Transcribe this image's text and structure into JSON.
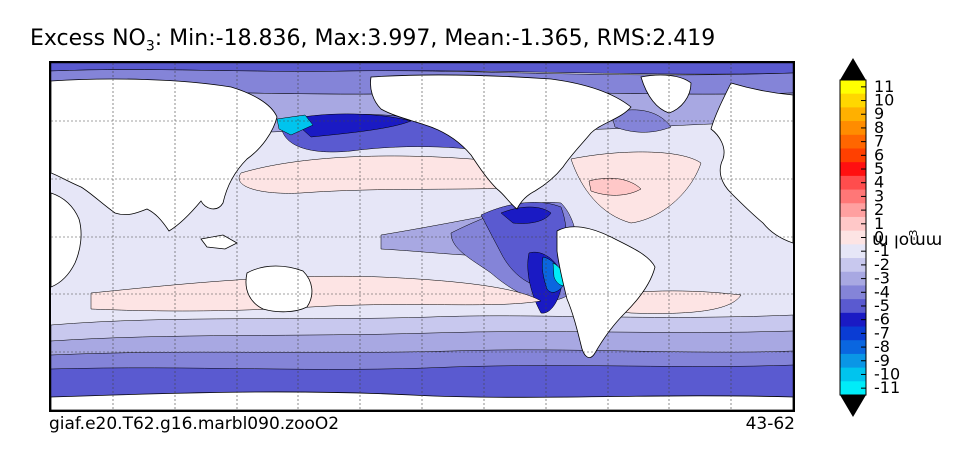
{
  "title": {
    "prefix": "Excess NO",
    "subscript": "3",
    "stats": ": Min:-18.836, Max:3.997, Mean:-1.365, RMS:2.419"
  },
  "footer": {
    "case_name": "giaf.e20.T62.g16.marbl090.zooO2",
    "years": "43-62"
  },
  "colorbar": {
    "units_base": "mmol m",
    "units_exponent": "-3",
    "levels": [
      "11",
      "10",
      "9",
      "8",
      "7",
      "6",
      "5",
      "4",
      "3",
      "2",
      "1",
      "0",
      "-1",
      "-2",
      "-3",
      "-4",
      "-5",
      "-6",
      "-7",
      "-8",
      "-9",
      "-10",
      "-11"
    ],
    "colors": [
      "#ffff00",
      "#ffd700",
      "#ffb000",
      "#ff8c00",
      "#ff6600",
      "#ff4000",
      "#ff1010",
      "#ff4d4d",
      "#ff7777",
      "#ffa0a0",
      "#ffc8c8",
      "#fde4e4",
      "#e6e6f7",
      "#c8c8ee",
      "#a8a8e2",
      "#8484d8",
      "#5a5ad0",
      "#1a1ac4",
      "#0a3cd4",
      "#0a66e0",
      "#0a96e6",
      "#00c4ee",
      "#00ecf8"
    ],
    "extend": "both"
  },
  "chart_data": {
    "type": "heatmap",
    "title": "Excess NO3: Min:-18.836, Max:3.997, Mean:-1.365, RMS:2.419",
    "variable": "Excess NO3",
    "units": "mmol m-3",
    "statistics": {
      "min": -18.836,
      "max": 3.997,
      "mean": -1.365,
      "rms": 2.419
    },
    "color_levels": [
      -11,
      -10,
      -9,
      -8,
      -7,
      -6,
      -5,
      -4,
      -3,
      -2,
      -1,
      0,
      1,
      2,
      3,
      4,
      5,
      6,
      7,
      8,
      9,
      10,
      11
    ],
    "colorbar_extend": "both",
    "grid": true,
    "projection": "global map, Pacific-centered",
    "annotation_left": "giaf.e20.T62.g16.marbl090.zooO2",
    "annotation_right": "43-62"
  }
}
